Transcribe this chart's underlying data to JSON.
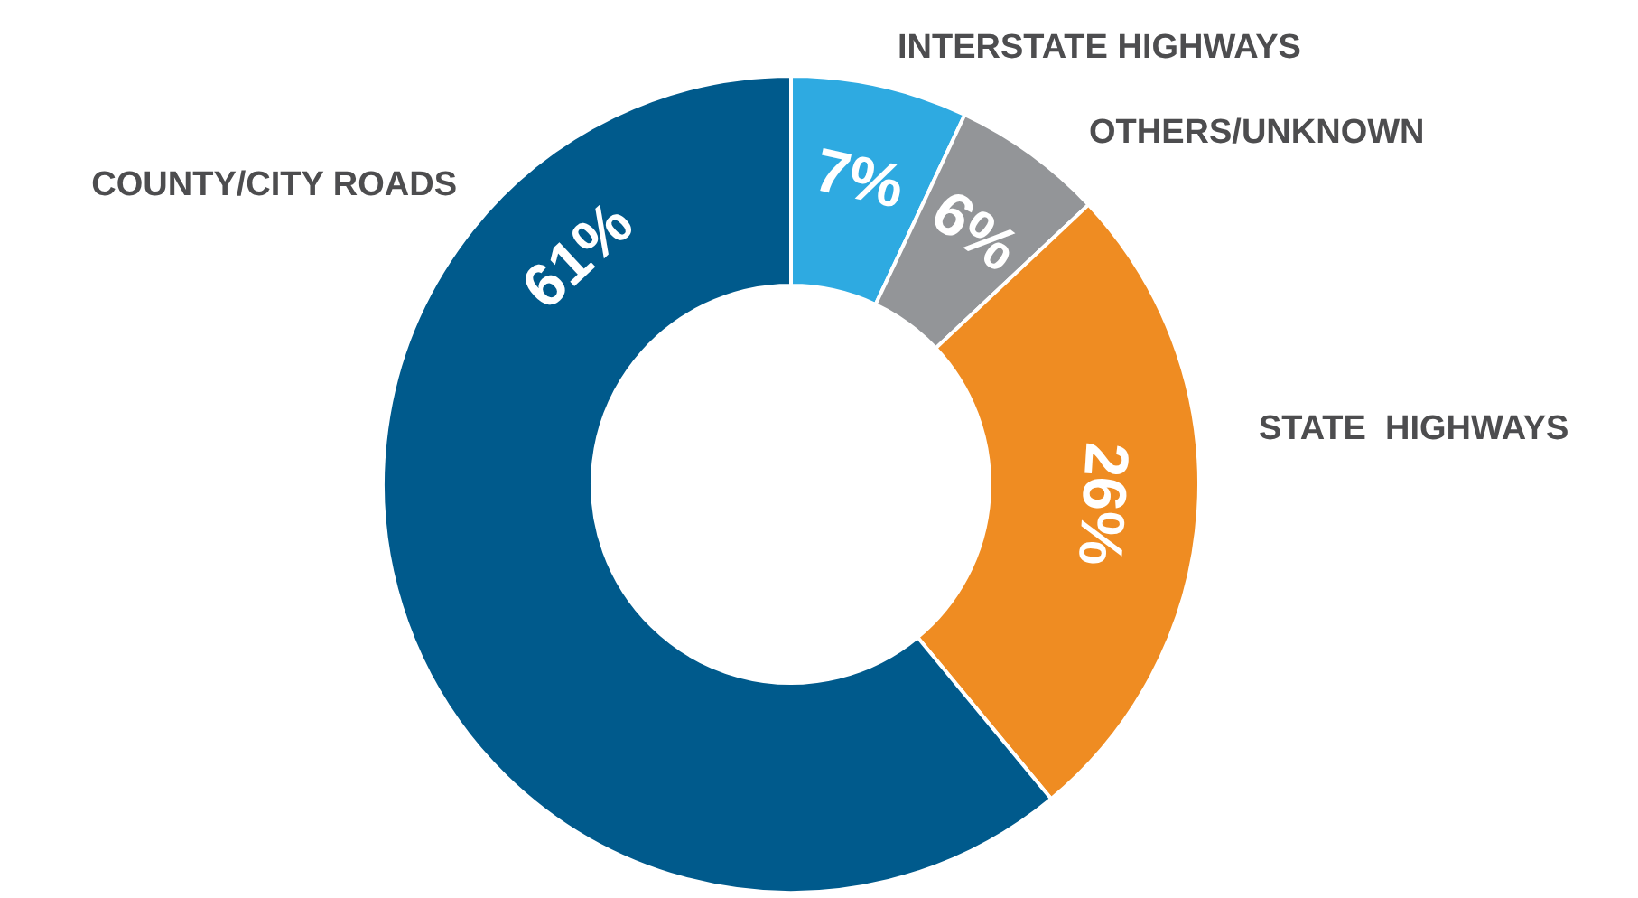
{
  "chart_data": {
    "type": "donut",
    "categories": [
      "INTERSTATE HIGHWAYS",
      "OTHERS/UNKNOWN",
      "STATE  HIGHWAYS",
      "COUNTY/CITY ROADS"
    ],
    "values": [
      7,
      6,
      26,
      61
    ],
    "colors": [
      "#2eaae1",
      "#939598",
      "#ef8c22",
      "#005a8c"
    ],
    "value_labels": [
      "7%",
      "6%",
      "26%",
      "61%"
    ]
  }
}
